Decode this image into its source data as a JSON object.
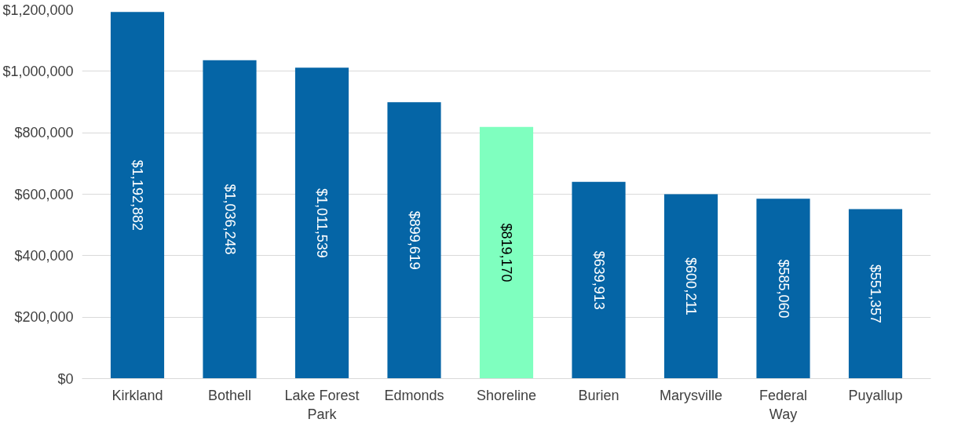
{
  "chart_data": {
    "type": "bar",
    "categories": [
      "Kirkland",
      "Bothell",
      "Lake Forest Park",
      "Edmonds",
      "Shoreline",
      "Burien",
      "Marysville",
      "Federal Way",
      "Puyallup"
    ],
    "values": [
      1192882,
      1036248,
      1011539,
      899619,
      819170,
      639913,
      600211,
      585060,
      551357
    ],
    "colors": [
      "#0565a6",
      "#0565a6",
      "#0565a6",
      "#0565a6",
      "#7fffbf",
      "#0565a6",
      "#0565a6",
      "#0565a6",
      "#0565a6"
    ],
    "value_labels": [
      "$1,192,882",
      "$1,036,248",
      "$1,011,539",
      "$899,619",
      "$819,170",
      "$639,913",
      "$600,211",
      "$585,060",
      "$551,357"
    ],
    "ylim": [
      0,
      1200000
    ],
    "yticks": [
      {
        "value": 0,
        "label": "$0"
      },
      {
        "value": 200000,
        "label": "$200,000"
      },
      {
        "value": 400000,
        "label": "$400,000"
      },
      {
        "value": 600000,
        "label": "$600,000"
      },
      {
        "value": 800000,
        "label": "$800,000"
      },
      {
        "value": 1000000,
        "label": "$1,000,000"
      },
      {
        "value": 1200000,
        "label": "$1,200,000"
      }
    ],
    "grid": "y"
  }
}
